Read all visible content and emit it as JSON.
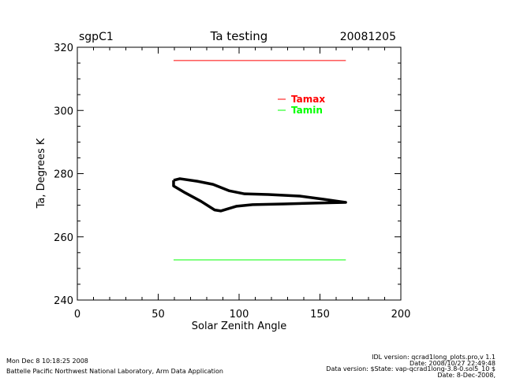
{
  "chart_data": {
    "type": "line",
    "title": "Ta testing",
    "site": "sgpC1",
    "date": "20081205",
    "xlabel": "Solar Zenith Angle",
    "ylabel": "Ta, Degrees K",
    "xlim": [
      0,
      200
    ],
    "ylim": [
      240,
      320
    ],
    "xticks": [
      "0",
      "50",
      "100",
      "150",
      "200"
    ],
    "yticks": [
      "240",
      "260",
      "280",
      "300",
      "320"
    ],
    "legend_position": "top-right",
    "series": [
      {
        "name": "Ta",
        "color": "#000000",
        "x": [
          59.5,
          63.4,
          74.1,
          83.9,
          93.7,
          103.4,
          118.0,
          137.6,
          152.2,
          165.9,
          147.3,
          127.8,
          108.3,
          98.5,
          88.8,
          84.9,
          76.6,
          66.8,
          59.5,
          59.5
        ],
        "y": [
          277.9,
          278.4,
          277.6,
          276.6,
          274.6,
          273.6,
          273.4,
          272.9,
          271.9,
          270.9,
          270.7,
          270.4,
          270.2,
          269.7,
          268.2,
          268.5,
          271.2,
          273.9,
          276.1,
          277.9
        ]
      },
      {
        "name": "Tamax",
        "color": "#ff0000",
        "x": [
          59.5,
          166
        ],
        "y": [
          315.8,
          315.8
        ]
      },
      {
        "name": "Tamin",
        "color": "#00ff00",
        "x": [
          59.5,
          166
        ],
        "y": [
          252.7,
          252.7
        ]
      }
    ]
  },
  "footer": {
    "timestamp": "Mon Dec  8 10:18:25 2008",
    "org": "Battelle Pacific Northwest National Laboratory, Arm Data Application",
    "idl_version": "IDL version: qcrad1long_plots.pro,v 1.1",
    "idl_date": "Date: 2008/10/27 22:49:48",
    "data_version": "Data version: $State: vap-qcrad1long-3.8-0.sol5_10 $",
    "data_date": "Date: 8-Dec-2008,"
  }
}
